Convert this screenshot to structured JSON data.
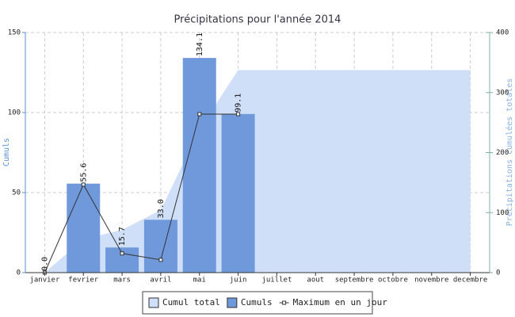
{
  "chart_data": {
    "type": "bar",
    "title": "Précipitations pour l'année 2014",
    "categories": [
      "janvier",
      "fevrier",
      "mars",
      "avril",
      "mai",
      "juin",
      "juillet",
      "aout",
      "septembre",
      "octobre",
      "novembre",
      "decembre"
    ],
    "y_label": "Cumuls",
    "y2_label": "Précipitations cumulées totales",
    "ylim": [
      0,
      150
    ],
    "yticks": [
      0,
      50,
      100,
      150
    ],
    "y2lim": [
      0,
      400
    ],
    "y2ticks": [
      0,
      100,
      200,
      300,
      400
    ],
    "grid": true,
    "legend": "bottom",
    "series": [
      {
        "name": "Cumul total",
        "type": "area",
        "axis": "y2",
        "color": "#d0dff8",
        "values": [
          0,
          55.6,
          71.3,
          104.3,
          238.4,
          337.5,
          337.5,
          337.5,
          337.5,
          337.5,
          337.5,
          337.5
        ]
      },
      {
        "name": "Cumuls",
        "type": "bar",
        "color": "#7099dc",
        "values": [
          0,
          55.6,
          15.7,
          33,
          134.1,
          99.1,
          null,
          null,
          null,
          null,
          null,
          null
        ],
        "value_labels": [
          "0.0",
          "55.6",
          "15.7",
          "33.0",
          "134.1",
          "99.1",
          null,
          null,
          null,
          null,
          null,
          null
        ]
      },
      {
        "name": "Maximum en un jour",
        "type": "line",
        "color": "#333333",
        "values": [
          0,
          55,
          12,
          8,
          99,
          99,
          null,
          null,
          null,
          null,
          null,
          null
        ]
      }
    ]
  }
}
